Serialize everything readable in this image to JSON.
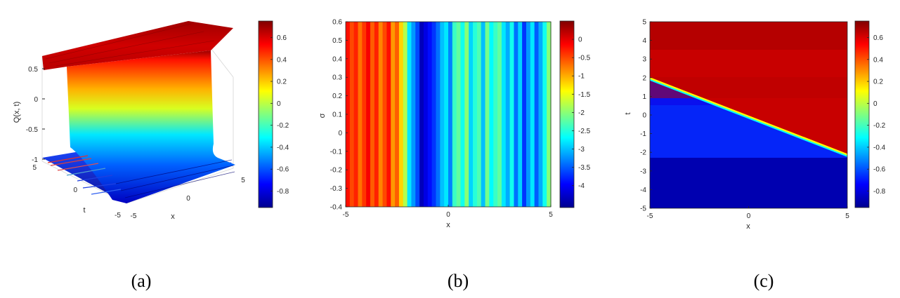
{
  "figure": {
    "captions": [
      "(a)",
      "(b)",
      "(c)"
    ]
  },
  "chart_data": [
    {
      "type": "surface",
      "panel": "(a)",
      "xlabel": "x",
      "ylabel": "t",
      "zlabel": "Q(x, t)",
      "xlim": [
        -5,
        5
      ],
      "ylim": [
        -5,
        5
      ],
      "zlim": [
        -1,
        0.7
      ],
      "x_ticks": [
        "-5",
        "0",
        "5"
      ],
      "t_ticks": [
        "-5",
        "0",
        "5"
      ],
      "z_ticks": [
        "-1",
        "-0.5",
        "0",
        "0.5"
      ],
      "colormap": "jet",
      "colorbar": {
        "range": [
          -0.95,
          0.75
        ],
        "ticks": [
          0.6,
          0.4,
          0.2,
          0,
          -0.2,
          -0.4,
          -0.6,
          -0.8
        ],
        "tick_labels": [
          "0.6",
          "0.4",
          "0.2",
          "0",
          "-0.2",
          "-0.4",
          "-0.6",
          "-0.8"
        ]
      },
      "surface": {
        "description_level_high": 0.7,
        "level_low": -0.85
      }
    },
    {
      "type": "heatmap",
      "panel": "(b)",
      "xlabel": "x",
      "ylabel": "σ",
      "xlim": [
        -5,
        5
      ],
      "ylim": [
        -0.4,
        0.6
      ],
      "x_ticks": [
        "-5",
        "0",
        "5"
      ],
      "y_ticks": [
        "0.6",
        "0.5",
        "0.4",
        "0.3",
        "0.2",
        "0.1",
        "0",
        "-0.1",
        "-0.2",
        "-0.3",
        "-0.4"
      ],
      "colormap": "jet",
      "colorbar": {
        "range": [
          -4.6,
          0.5
        ],
        "ticks": [
          0,
          -0.5,
          -1,
          -1.5,
          -2,
          -2.5,
          -3,
          -3.5,
          -4
        ],
        "tick_labels": [
          "0",
          "-0.5",
          "-1",
          "-1.5",
          "-2",
          "-2.5",
          "-3",
          "-3.5",
          "-4"
        ]
      },
      "stripe_x": [
        -5,
        -4.8,
        -4.6,
        -4.4,
        -4.2,
        -4,
        -3.8,
        -3.6,
        -3.4,
        -3.2,
        -3,
        -2.8,
        -2.6,
        -2.4,
        -2.2,
        -2,
        -1.8,
        -1.6,
        -1.4,
        -1.2,
        -1,
        -0.8,
        -0.6,
        -0.4,
        -0.2,
        0,
        0.2,
        0.4,
        0.6,
        0.8,
        1,
        1.2,
        1.4,
        1.6,
        1.8,
        2,
        2.2,
        2.4,
        2.6,
        2.8,
        3,
        3.2,
        3.4,
        3.6,
        3.8,
        4,
        4.2,
        4.4,
        4.6,
        4.8,
        5
      ],
      "stripe_values": [
        -0.2,
        -0.5,
        -0.3,
        -0.7,
        -0.4,
        -0.1,
        -0.6,
        -0.3,
        -0.8,
        -0.5,
        -0.2,
        -0.9,
        -0.6,
        -1.2,
        -1.8,
        -2.8,
        -3.2,
        -3.6,
        -4.3,
        -4.1,
        -3.9,
        -3.7,
        -3.4,
        -3.0,
        -2.8,
        -3.3,
        -2.4,
        -2.2,
        -2.6,
        -2.0,
        -2.9,
        -2.5,
        -2.3,
        -3.0,
        -2.1,
        -2.7,
        -2.4,
        -2.2,
        -2.8,
        -3.1,
        -2.6,
        -3.4,
        -2.9,
        -3.7,
        -3.2,
        -2.8,
        -3.5,
        -3.1,
        -2.6,
        -2.0
      ]
    },
    {
      "type": "heatmap",
      "panel": "(c)",
      "xlabel": "x",
      "ylabel": "t",
      "xlim": [
        -5,
        5
      ],
      "ylim": [
        -5,
        5
      ],
      "x_ticks": [
        "-5",
        "0",
        "5"
      ],
      "y_ticks": [
        "5",
        "4",
        "3",
        "2",
        "1",
        "0",
        "-1",
        "-2",
        "-3",
        "-4",
        "-5"
      ],
      "colormap": "jet",
      "colorbar": {
        "range": [
          -0.95,
          0.75
        ],
        "ticks": [
          0.6,
          0.4,
          0.2,
          0,
          -0.2,
          -0.4,
          -0.6,
          -0.8
        ],
        "tick_labels": [
          "0.6",
          "0.4",
          "0.2",
          "0",
          "-0.2",
          "-0.4",
          "-0.6",
          "-0.8"
        ]
      },
      "front": {
        "t_at_x_min": 2.0,
        "t_at_x_max": -2.1
      },
      "level_high": 0.7,
      "level_low": -0.85
    }
  ]
}
